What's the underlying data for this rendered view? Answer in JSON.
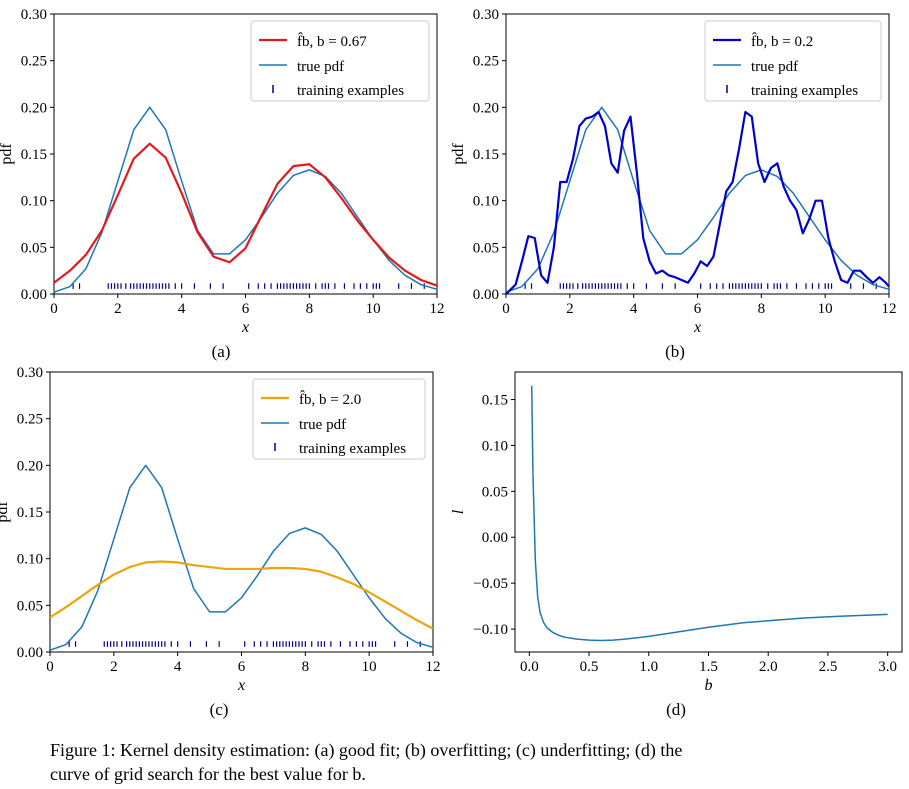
{
  "caption": {
    "line1": "Figure 1: Kernel density estimation: (a) good fit; (b) overfitting; (c) underfitting; (d) the",
    "line2": "curve of grid search for the best value for b."
  },
  "sublabels": {
    "a": "(a)",
    "b": "(b)",
    "c": "(c)",
    "d": "(d)"
  },
  "colors": {
    "true_pdf": "#1f77b4",
    "training": "#00008b",
    "fit_a": "#e31a1c",
    "fit_b": "#0000cc",
    "fit_c": "#f0a30a",
    "curve_d": "#1f77b4"
  },
  "training_examples": [
    0.6,
    0.8,
    1.7,
    1.8,
    1.9,
    2.0,
    2.1,
    2.25,
    2.4,
    2.5,
    2.6,
    2.7,
    2.8,
    2.9,
    3.0,
    3.1,
    3.2,
    3.3,
    3.4,
    3.5,
    3.6,
    3.8,
    4.0,
    4.4,
    4.9,
    5.3,
    6.1,
    6.4,
    6.6,
    6.8,
    7.0,
    7.1,
    7.2,
    7.3,
    7.4,
    7.5,
    7.6,
    7.7,
    7.8,
    7.9,
    8.0,
    8.2,
    8.4,
    8.5,
    8.6,
    8.8,
    9.1,
    9.4,
    9.6,
    9.8,
    10.0,
    10.1,
    10.2,
    10.8,
    11.2,
    11.6
  ],
  "chart_data": [
    {
      "id": "a",
      "type": "line",
      "xlabel": "x",
      "ylabel": "pdf",
      "xlim": [
        0,
        12
      ],
      "ylim": [
        0,
        0.3
      ],
      "xticks": [
        "0",
        "2",
        "4",
        "6",
        "8",
        "10",
        "12"
      ],
      "yticks": [
        "0.00",
        "0.05",
        "0.10",
        "0.15",
        "0.20",
        "0.25",
        "0.30"
      ],
      "legend_position": "top-right",
      "legend": {
        "fit": "f̂b, b = 0.67",
        "true": "true pdf",
        "train": "training examples"
      },
      "series": [
        {
          "name": "f̂b, b = 0.67",
          "color": "#e31a1c",
          "x": [
            0,
            0.5,
            1,
            1.5,
            2,
            2.5,
            3,
            3.5,
            4,
            4.5,
            5,
            5.5,
            6,
            6.5,
            7,
            7.5,
            8,
            8.5,
            9,
            9.5,
            10,
            10.5,
            11,
            11.5,
            12
          ],
          "y": [
            0.012,
            0.025,
            0.042,
            0.068,
            0.106,
            0.145,
            0.161,
            0.146,
            0.108,
            0.066,
            0.04,
            0.034,
            0.049,
            0.084,
            0.118,
            0.137,
            0.139,
            0.125,
            0.103,
            0.079,
            0.058,
            0.039,
            0.025,
            0.015,
            0.009
          ]
        },
        {
          "name": "true pdf",
          "color": "#1f77b4",
          "x": [
            0,
            0.5,
            1,
            1.5,
            2,
            2.5,
            3,
            3.5,
            4,
            4.5,
            5,
            5.5,
            6,
            6.5,
            7,
            7.5,
            8,
            8.5,
            9,
            9.5,
            10,
            10.5,
            11,
            11.5,
            12
          ],
          "y": [
            0.002,
            0.008,
            0.027,
            0.066,
            0.121,
            0.176,
            0.2,
            0.176,
            0.121,
            0.068,
            0.043,
            0.043,
            0.058,
            0.082,
            0.108,
            0.127,
            0.133,
            0.126,
            0.108,
            0.083,
            0.058,
            0.036,
            0.02,
            0.01,
            0.005
          ]
        }
      ]
    },
    {
      "id": "b",
      "type": "line",
      "xlabel": "x",
      "ylabel": "pdf",
      "xlim": [
        0,
        12
      ],
      "ylim": [
        0,
        0.3
      ],
      "xticks": [
        "0",
        "2",
        "4",
        "6",
        "8",
        "10",
        "12"
      ],
      "yticks": [
        "0.00",
        "0.05",
        "0.10",
        "0.15",
        "0.20",
        "0.25",
        "0.30"
      ],
      "legend_position": "top-right",
      "legend": {
        "fit": "f̂b, b = 0.2",
        "true": "true pdf",
        "train": "training examples"
      },
      "series": [
        {
          "name": "f̂b, b = 0.2",
          "color": "#0000cc",
          "x": [
            0,
            0.3,
            0.5,
            0.7,
            0.9,
            1.1,
            1.3,
            1.5,
            1.7,
            1.9,
            2.1,
            2.3,
            2.5,
            2.7,
            2.9,
            3.1,
            3.3,
            3.5,
            3.7,
            3.9,
            4.1,
            4.3,
            4.5,
            4.7,
            4.9,
            5.1,
            5.3,
            5.5,
            5.7,
            5.9,
            6.1,
            6.3,
            6.5,
            6.7,
            6.9,
            7.1,
            7.3,
            7.5,
            7.7,
            7.9,
            8.1,
            8.3,
            8.5,
            8.7,
            8.9,
            9.1,
            9.3,
            9.5,
            9.7,
            9.9,
            10.1,
            10.3,
            10.5,
            10.7,
            10.9,
            11.1,
            11.3,
            11.5,
            11.7,
            11.9,
            12
          ],
          "y": [
            0.0,
            0.01,
            0.035,
            0.062,
            0.06,
            0.02,
            0.012,
            0.05,
            0.12,
            0.12,
            0.145,
            0.18,
            0.188,
            0.19,
            0.195,
            0.18,
            0.14,
            0.13,
            0.175,
            0.19,
            0.13,
            0.06,
            0.035,
            0.022,
            0.025,
            0.02,
            0.018,
            0.015,
            0.012,
            0.022,
            0.035,
            0.03,
            0.04,
            0.075,
            0.11,
            0.12,
            0.155,
            0.195,
            0.19,
            0.14,
            0.12,
            0.135,
            0.14,
            0.115,
            0.1,
            0.09,
            0.065,
            0.08,
            0.1,
            0.1,
            0.06,
            0.035,
            0.015,
            0.012,
            0.025,
            0.025,
            0.018,
            0.012,
            0.018,
            0.012,
            0.008
          ]
        },
        {
          "name": "true pdf",
          "color": "#1f77b4",
          "x": [
            0,
            0.5,
            1,
            1.5,
            2,
            2.5,
            3,
            3.5,
            4,
            4.5,
            5,
            5.5,
            6,
            6.5,
            7,
            7.5,
            8,
            8.5,
            9,
            9.5,
            10,
            10.5,
            11,
            11.5,
            12
          ],
          "y": [
            0.002,
            0.008,
            0.027,
            0.066,
            0.121,
            0.176,
            0.2,
            0.176,
            0.121,
            0.068,
            0.043,
            0.043,
            0.058,
            0.082,
            0.108,
            0.127,
            0.133,
            0.126,
            0.108,
            0.083,
            0.058,
            0.036,
            0.02,
            0.01,
            0.005
          ]
        }
      ]
    },
    {
      "id": "c",
      "type": "line",
      "xlabel": "x",
      "ylabel": "pdf",
      "xlim": [
        0,
        12
      ],
      "ylim": [
        0,
        0.3
      ],
      "xticks": [
        "0",
        "2",
        "4",
        "6",
        "8",
        "10",
        "12"
      ],
      "yticks": [
        "0.00",
        "0.05",
        "0.10",
        "0.15",
        "0.20",
        "0.25",
        "0.30"
      ],
      "legend_position": "top-right",
      "legend": {
        "fit": "f̂b, b = 2.0",
        "true": "true pdf",
        "train": "training examples"
      },
      "series": [
        {
          "name": "f̂b, b = 2.0",
          "color": "#f0a30a",
          "x": [
            0,
            0.5,
            1,
            1.5,
            2,
            2.5,
            3,
            3.5,
            4,
            4.5,
            5,
            5.5,
            6,
            6.5,
            7,
            7.5,
            8,
            8.5,
            9,
            9.5,
            10,
            10.5,
            11,
            11.5,
            12
          ],
          "y": [
            0.037,
            0.048,
            0.06,
            0.072,
            0.083,
            0.091,
            0.096,
            0.097,
            0.096,
            0.093,
            0.091,
            0.089,
            0.089,
            0.089,
            0.09,
            0.09,
            0.089,
            0.086,
            0.08,
            0.073,
            0.064,
            0.054,
            0.044,
            0.034,
            0.025
          ]
        },
        {
          "name": "true pdf",
          "color": "#1f77b4",
          "x": [
            0,
            0.5,
            1,
            1.5,
            2,
            2.5,
            3,
            3.5,
            4,
            4.5,
            5,
            5.5,
            6,
            6.5,
            7,
            7.5,
            8,
            8.5,
            9,
            9.5,
            10,
            10.5,
            11,
            11.5,
            12
          ],
          "y": [
            0.002,
            0.008,
            0.027,
            0.066,
            0.121,
            0.176,
            0.2,
            0.176,
            0.121,
            0.068,
            0.043,
            0.043,
            0.058,
            0.082,
            0.108,
            0.127,
            0.133,
            0.126,
            0.108,
            0.083,
            0.058,
            0.036,
            0.02,
            0.01,
            0.005
          ]
        }
      ]
    },
    {
      "id": "d",
      "type": "line",
      "xlabel": "b",
      "ylabel": "l",
      "xlim": [
        -0.12,
        3.12
      ],
      "ylim": [
        -0.125,
        0.18
      ],
      "xticks": [
        "0.0",
        "0.5",
        "1.0",
        "1.5",
        "2.0",
        "2.5",
        "3.0"
      ],
      "xtick_values": [
        0,
        0.5,
        1,
        1.5,
        2,
        2.5,
        3
      ],
      "yticks": [
        "0.15",
        "0.10",
        "0.05",
        "0.00",
        "−0.05",
        "−0.10"
      ],
      "ytick_values": [
        0.15,
        0.1,
        0.05,
        0.0,
        -0.05,
        -0.1
      ],
      "series": [
        {
          "name": "",
          "color": "#1f77b4",
          "x": [
            0.02,
            0.03,
            0.05,
            0.07,
            0.09,
            0.12,
            0.15,
            0.2,
            0.25,
            0.3,
            0.4,
            0.5,
            0.6,
            0.7,
            0.8,
            1.0,
            1.2,
            1.5,
            1.8,
            2.0,
            2.3,
            2.6,
            3.0
          ],
          "y": [
            0.165,
            0.07,
            -0.025,
            -0.065,
            -0.082,
            -0.093,
            -0.099,
            -0.104,
            -0.107,
            -0.109,
            -0.111,
            -0.112,
            -0.1125,
            -0.112,
            -0.111,
            -0.108,
            -0.104,
            -0.098,
            -0.093,
            -0.091,
            -0.088,
            -0.086,
            -0.084
          ]
        }
      ]
    }
  ]
}
